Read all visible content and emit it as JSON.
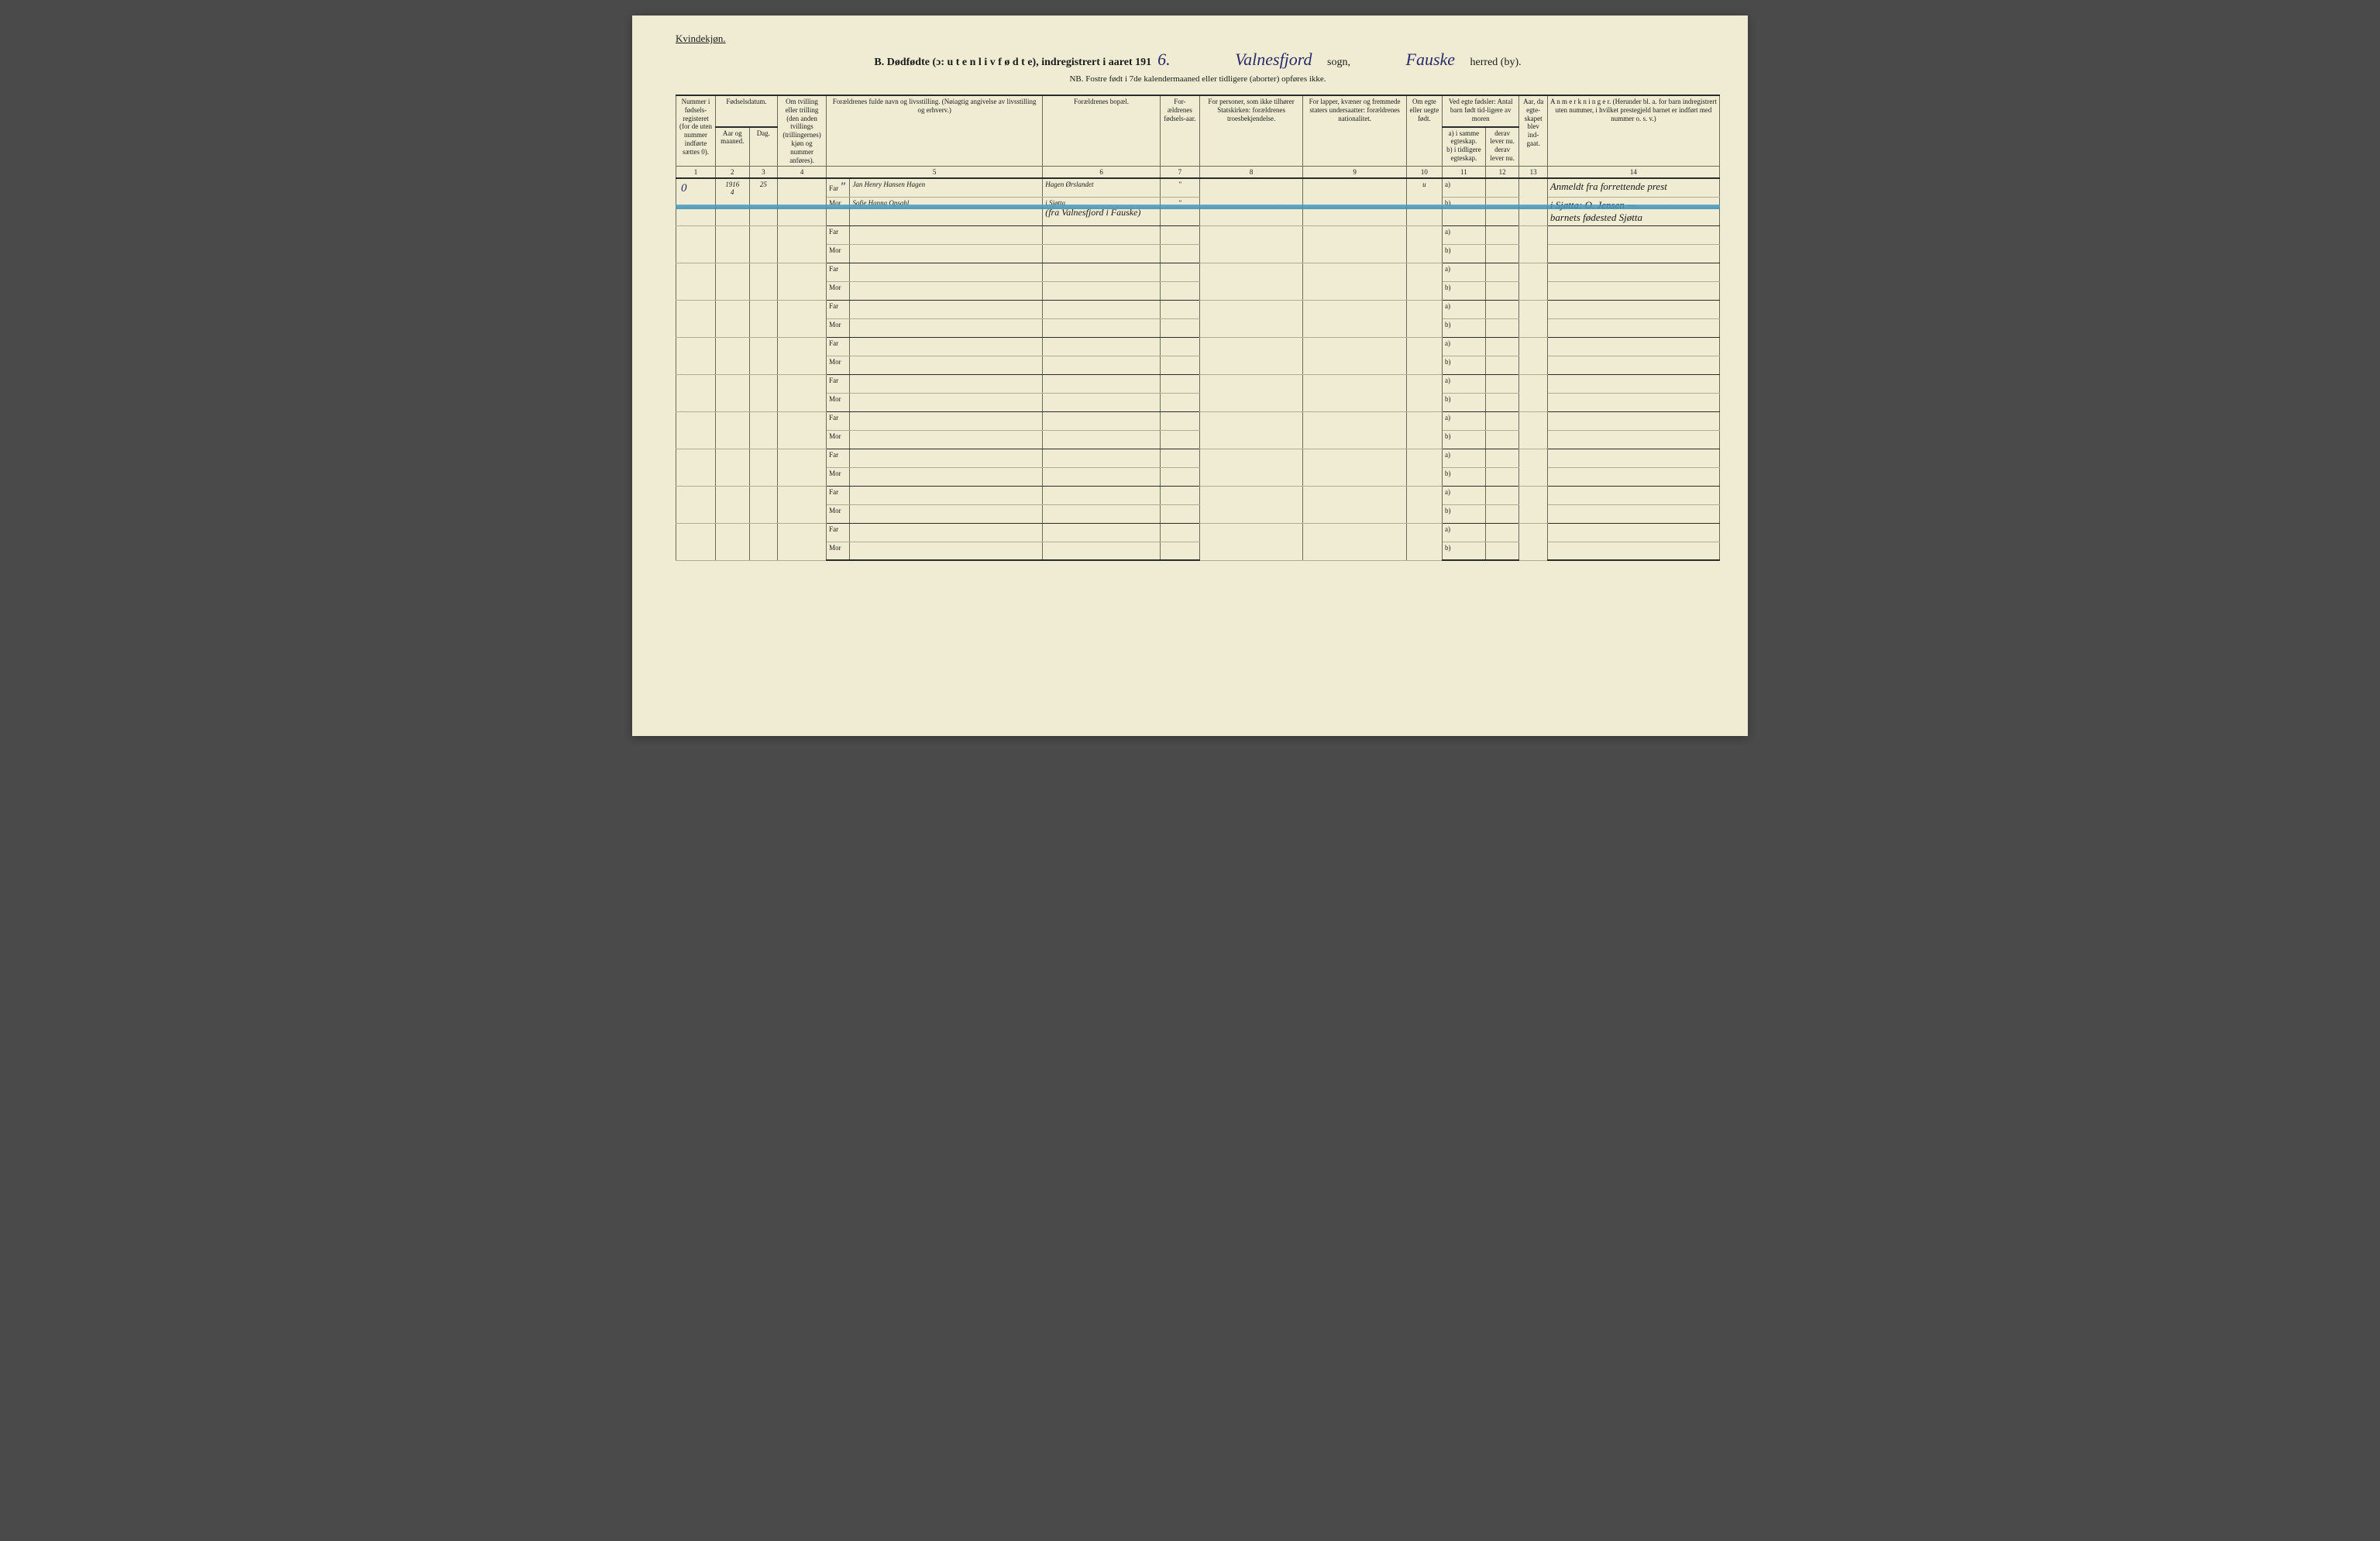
{
  "page": {
    "background_color": "#f0ecd4",
    "gender_label": "Kvindekjøn.",
    "title_prefix": "B.  Dødfødte (ɔ: u t e n  l i v  f ø d t e),  indregistrert i aaret 191",
    "title_year_hand": "6.",
    "sogn_hand": "Valnesfjord",
    "sogn_label": "sogn,",
    "herred_hand": "Fauske",
    "herred_label": "herred (by).",
    "nb_line": "NB. Fostre født i 7de kalendermaaned eller tidligere (aborter) opføres ikke."
  },
  "columns": {
    "widths_pct": [
      4.2,
      3.6,
      3.0,
      5.2,
      23.0,
      12.5,
      4.2,
      11.0,
      11.0,
      3.8,
      4.6,
      3.6,
      3.0,
      18.3
    ],
    "headers": [
      "Nummer i fødsels-registeret (for de uten nummer indførte sættes 0).",
      "Fødselsdatum.",
      "Om tvilling eller trilling (den anden tvillings (trillingernes) kjøn og nummer anføres).",
      "Forældrenes fulde navn og livsstilling.\n(Nøiagtig angivelse av livsstilling og erhverv.)",
      "Forældrenes bopæl.",
      "For-ældrenes fødsels-aar.",
      "For personer, som ikke tilhører Statskirken:\nforældrenes troesbekjendelse.",
      "For lapper, kvæner og fremmede staters undersaatter:\nforældrenes nationalitet.",
      "Om egte eller uegte født.",
      "Ved egte fødsler:\nAntal barn født tid-ligere av moren",
      "Aar, da egte-skapet blev ind-gaat.",
      "A n m e r k n i n g e r.\n(Herunder bl. a. for barn indregistrert uten nummer, i hvilket prestegjeld barnet er indført med nummer o. s. v.)"
    ],
    "sub_date": [
      "Aar og maaned.",
      "Dag."
    ],
    "sub_egte": [
      "a) i samme egteskap.",
      "derav lever nu.",
      "b) i tidligere egteskap.",
      "derav lever nu."
    ],
    "col_numbers": [
      "1",
      "2",
      "3",
      "4",
      "5",
      "6",
      "7",
      "8",
      "9",
      "10",
      "11",
      "12",
      "13",
      "14"
    ]
  },
  "labels": {
    "far": "Far",
    "mor": "Mor",
    "ditto": "\"",
    "a": "a)",
    "b": "b)"
  },
  "entries": [
    {
      "reg_no": "0",
      "year_month": "1916\n4",
      "day": "25",
      "tvilling": "",
      "far_name": "Jan Henry Hansen Hagen",
      "mor_name": "Sofie Hanna Opsahl",
      "far_bopael": "Hagen Ørslandet",
      "mor_bopael": "i Sjøtta",
      "mor_note": "(fra Valnesfjord i Fauske)",
      "far_fodeaar": "\"",
      "mor_fodeaar": "\"",
      "troes": "",
      "nationalitet": "",
      "egte": "u",
      "col11_a": "",
      "col11_b": "",
      "col12": "",
      "col13": "",
      "anmerkning_1": "Anmeldt fra forrettende prest",
      "anmerkning_2": "i Sjøtta: O. Jensen —",
      "anmerkning_3": "barnets fødested Sjøtta"
    }
  ],
  "style": {
    "rule_color": "#2a2a2a",
    "light_rule_color": "#b0ac94",
    "ink_color": "#2a2a6a",
    "highlight_color": "#4aa0c8",
    "header_font_size": 9,
    "body_font_size": 11,
    "handwriting_font": "Brush Script MT"
  },
  "blank_row_pairs": 9
}
